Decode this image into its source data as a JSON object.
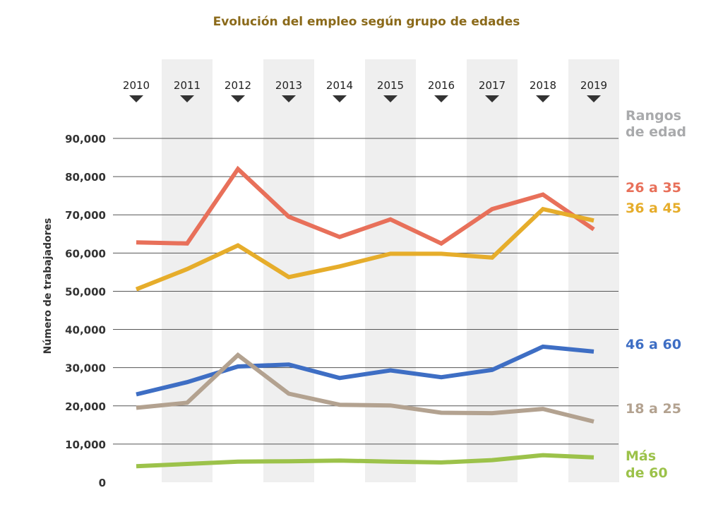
{
  "chart_data": {
    "type": "line",
    "title": "Evolución del empleo según grupo de edades",
    "ylabel": "Número de trabajadores",
    "xlabel": "",
    "categories": [
      "2010",
      "2011",
      "2012",
      "2013",
      "2014",
      "2015",
      "2016",
      "2017",
      "2018",
      "2019"
    ],
    "ylim": [
      0,
      90000
    ],
    "yticks": [
      0,
      10000,
      20000,
      30000,
      40000,
      50000,
      60000,
      70000,
      80000,
      90000
    ],
    "ytick_labels": [
      "0",
      "10,000",
      "20,000",
      "30,000",
      "40,000",
      "50,000",
      "60,000",
      "70,000",
      "80,000",
      "90,000"
    ],
    "grid": true,
    "alternating_column_shading": true,
    "legend_title": [
      "Rangos",
      "de edad"
    ],
    "legend_placement": "right",
    "series": [
      {
        "name": "26 a 35",
        "label_lines": [
          "26 a 35"
        ],
        "color": "#e8705a",
        "values": [
          62800,
          62500,
          82000,
          69500,
          64200,
          68800,
          62500,
          71500,
          75300,
          66200
        ]
      },
      {
        "name": "36 a 45",
        "label_lines": [
          "36 a 45"
        ],
        "color": "#e6ad2b",
        "values": [
          50500,
          55800,
          62000,
          53700,
          56500,
          59800,
          59800,
          58800,
          71500,
          68500
        ]
      },
      {
        "name": "46 a 60",
        "label_lines": [
          "46 a 60"
        ],
        "color": "#3e6ec4",
        "values": [
          23000,
          26200,
          30300,
          30800,
          27300,
          29300,
          27500,
          29400,
          35500,
          34200
        ]
      },
      {
        "name": "18 a 25",
        "label_lines": [
          "18 a 25"
        ],
        "color": "#b3a290",
        "values": [
          19500,
          20800,
          33300,
          23200,
          20300,
          20100,
          18200,
          18100,
          19200,
          15900
        ]
      },
      {
        "name": "Más de 60",
        "label_lines": [
          "Más",
          "de 60"
        ],
        "color": "#9cc24a",
        "values": [
          4200,
          4800,
          5400,
          5500,
          5700,
          5400,
          5200,
          5800,
          7100,
          6500
        ]
      }
    ]
  },
  "colors": {
    "title": "#8b6a1a",
    "legend_title": "#a9aaac",
    "grid": "#555555",
    "shade": "#efefef",
    "marker": "#333333"
  }
}
